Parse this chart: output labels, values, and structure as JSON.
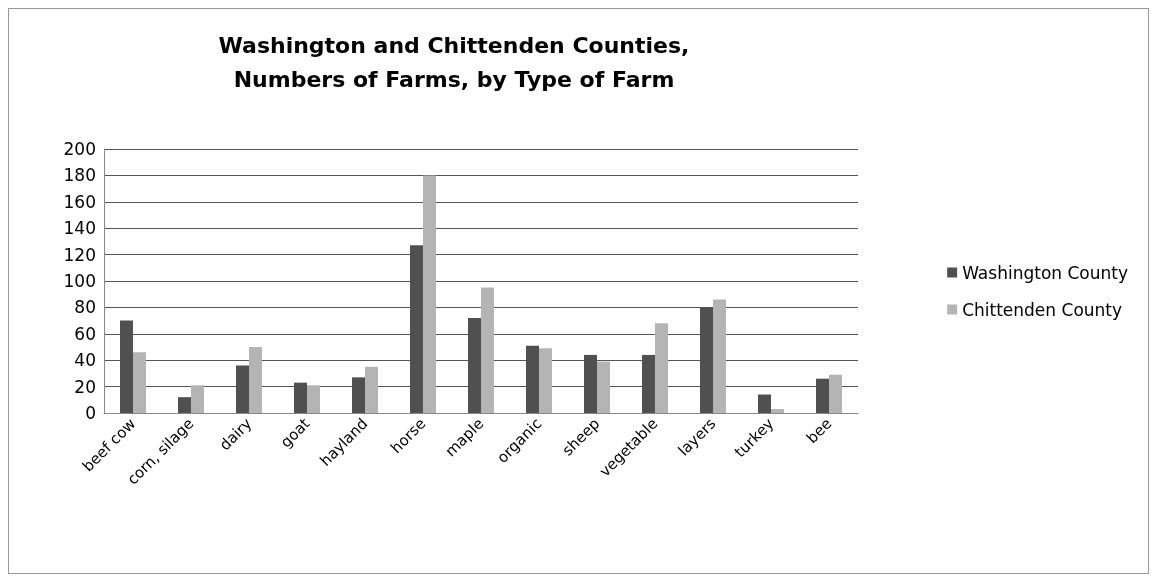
{
  "chart_data": {
    "type": "bar",
    "title": "Washington and Chittenden Counties,\nNumbers of Farms, by Type of Farm",
    "categories": [
      "beef cow",
      "corn, silage",
      "dairy",
      "goat",
      "hayland",
      "horse",
      "maple",
      "organic",
      "sheep",
      "vegetable",
      "layers",
      "turkey",
      "bee"
    ],
    "series": [
      {
        "name": "Washington County",
        "color": "#505050",
        "values": [
          70,
          12,
          36,
          23,
          27,
          127,
          72,
          51,
          44,
          44,
          80,
          14,
          26
        ]
      },
      {
        "name": "Chittenden County",
        "color": "#b4b4b4",
        "values": [
          46,
          21,
          50,
          21,
          35,
          180,
          95,
          49,
          39,
          68,
          86,
          3,
          29
        ]
      }
    ],
    "ylim": [
      0,
      200
    ],
    "yticks": [
      0,
      20,
      40,
      60,
      80,
      100,
      120,
      140,
      160,
      180,
      200
    ],
    "grid": "y",
    "legend": "right"
  }
}
